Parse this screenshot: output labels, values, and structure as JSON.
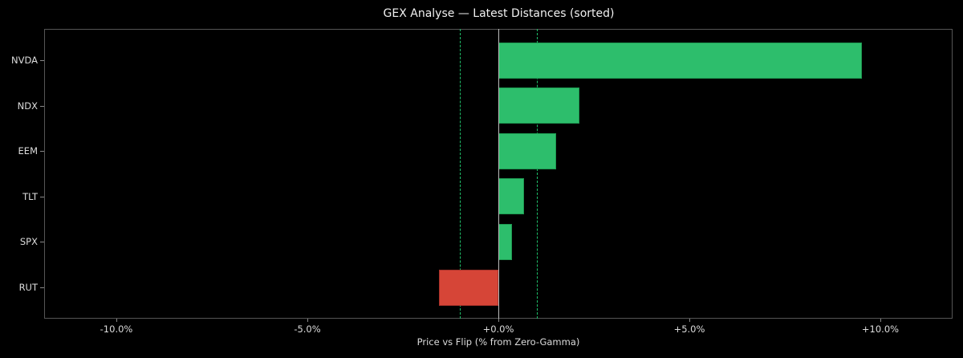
{
  "chart_data": {
    "type": "bar",
    "orientation": "horizontal",
    "title": "GEX Analyse — Latest Distances (sorted)",
    "xlabel": "Price vs Flip (% from Zero-Gamma)",
    "ylabel": "",
    "categories": [
      "NVDA",
      "NDX",
      "EEM",
      "TLT",
      "SPX",
      "RUT"
    ],
    "values": [
      9.52,
      2.12,
      1.51,
      0.67,
      0.36,
      -1.55
    ],
    "units": "%",
    "xlim": [
      -12.0,
      11.8
    ],
    "xticks": [
      -10,
      -5,
      0,
      5,
      10
    ],
    "xtick_labels": [
      "-10.0%",
      "-5.0%",
      "+0.0%",
      "+5.0%",
      "+10.0%"
    ],
    "reference_lines": [
      {
        "x": 0,
        "style": "solid",
        "color": "#bbbbbb"
      },
      {
        "x": -1.0,
        "style": "dashed",
        "color": "#1fbf6a"
      },
      {
        "x": 1.0,
        "style": "dashed",
        "color": "#1fbf6a"
      }
    ],
    "colors": {
      "positive": "#2dbe6c",
      "negative": "#d64537",
      "background": "#000000"
    },
    "grid": false,
    "legend": null
  }
}
